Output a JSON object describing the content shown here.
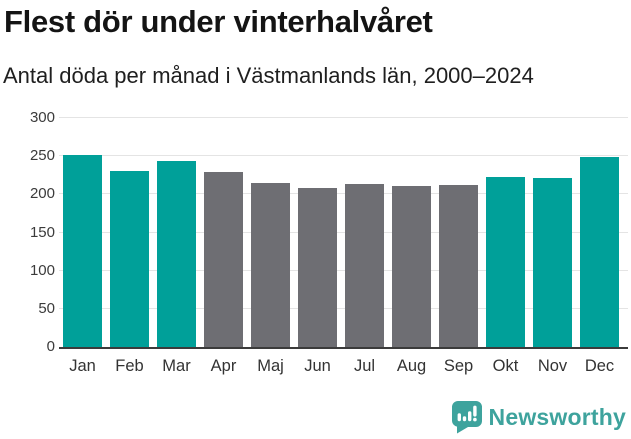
{
  "header": {
    "title": "Flest dör under vinterhalvåret",
    "subtitle": "Antal döda per månad i Västmanlands län, 2000–2024"
  },
  "chart_data": {
    "type": "bar",
    "title": "Flest dör under vinterhalvåret",
    "subtitle": "Antal döda per månad i Västmanlands län, 2000–2024",
    "categories": [
      "Jan",
      "Feb",
      "Mar",
      "Apr",
      "Maj",
      "Jun",
      "Jul",
      "Aug",
      "Sep",
      "Okt",
      "Nov",
      "Dec"
    ],
    "values": [
      252,
      231,
      244,
      229,
      215,
      208,
      213,
      211,
      212,
      223,
      222,
      249
    ],
    "bar_color_keys": [
      "teal",
      "teal",
      "teal",
      "gray",
      "gray",
      "gray",
      "gray",
      "gray",
      "gray",
      "teal",
      "teal",
      "teal"
    ],
    "palette": {
      "teal": "#00a099",
      "gray": "#6e6e73"
    },
    "highlight_meaning": "winter half-year months highlighted in teal",
    "y_ticks": [
      0,
      50,
      100,
      150,
      200,
      250,
      300
    ],
    "ylim": [
      0,
      300
    ],
    "xlabel": "",
    "ylabel": "",
    "grid": "horizontal",
    "legend": "none",
    "axis_color": "#3b3b3b",
    "gridline_color": "#e4e4e4"
  },
  "footer": {
    "brand": "Newsworthy",
    "brand_color": "#3ea39d",
    "logo_icon": "newsworthy-speech-bubble-bar-chart-icon"
  }
}
